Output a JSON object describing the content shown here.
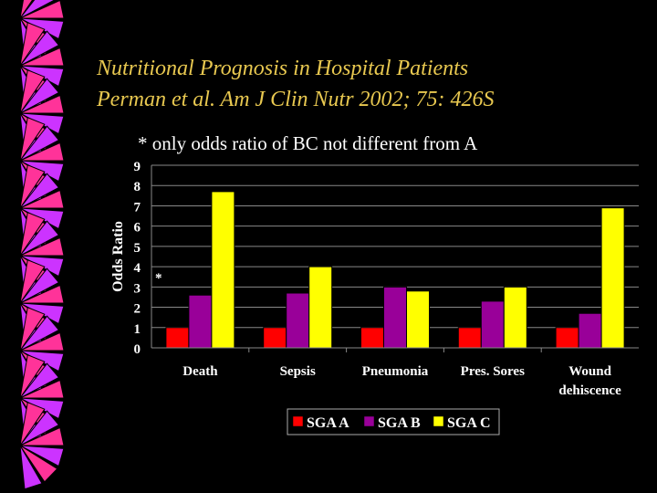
{
  "slide": {
    "title_line1": "Nutritional Prognosis in Hospital Patients",
    "title_line2": "Perman et al. Am J Clin Nutr 2002; 75: 426S",
    "note": "* only odds ratio of BC not different from A",
    "marker": "*"
  },
  "colors": {
    "background": "#000000",
    "title": "#e8c850",
    "SGA A": "#ff0000",
    "SGA B": "#990099",
    "SGA C": "#ffff00",
    "border_pink": "#ff3399",
    "border_violet": "#cc33ff"
  },
  "chart_data": {
    "type": "bar",
    "ylabel": "Odds Ratio",
    "ylim": [
      0,
      9
    ],
    "yticks": [
      0,
      1,
      2,
      3,
      4,
      5,
      6,
      7,
      8,
      9
    ],
    "categories": [
      "Death",
      "Sepsis",
      "Pneumonia",
      "Pres. Sores",
      "Wound dehiscence"
    ],
    "series": [
      {
        "name": "SGA A",
        "values": [
          1,
          1,
          1,
          1,
          1
        ]
      },
      {
        "name": "SGA B",
        "values": [
          2.6,
          2.7,
          3.0,
          2.3,
          1.7
        ]
      },
      {
        "name": "SGA C",
        "values": [
          7.7,
          4.0,
          2.8,
          3.0,
          6.9
        ]
      }
    ],
    "grid": true,
    "legend": "bottom"
  }
}
